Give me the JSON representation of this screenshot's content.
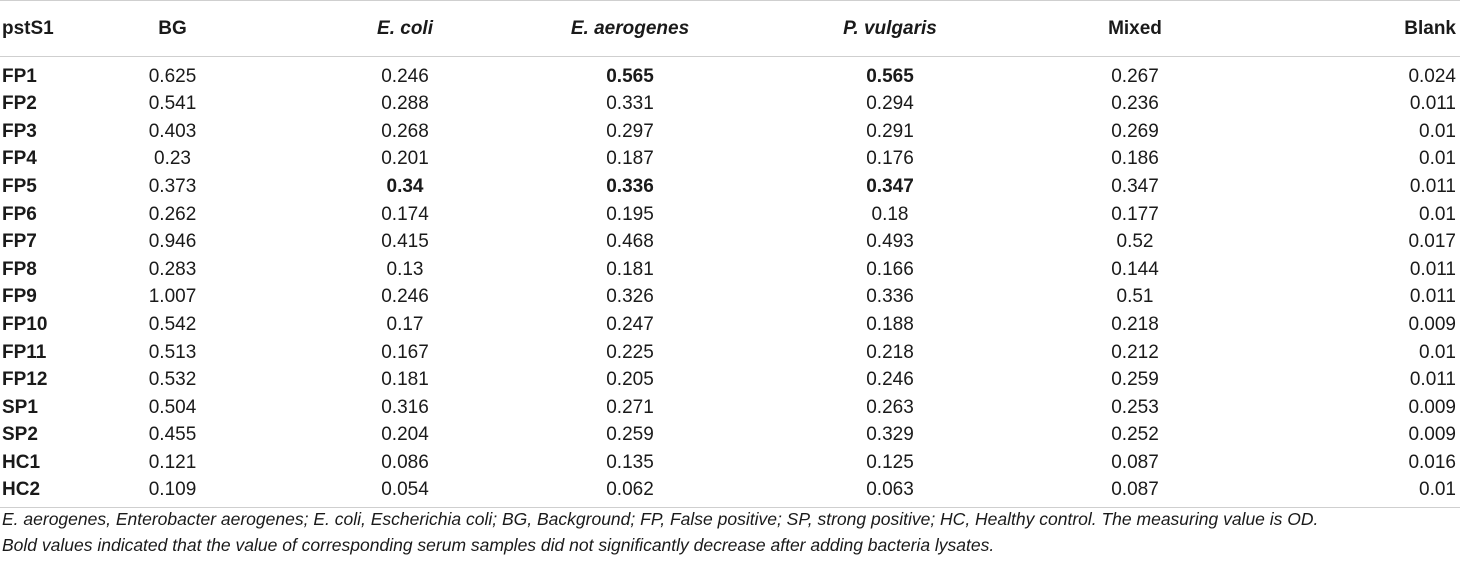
{
  "table": {
    "header": {
      "row_label": "pstS1",
      "columns": [
        "BG",
        "E. coli",
        "E. aerogenes",
        "P. vulgaris",
        "Mixed",
        "Blank"
      ]
    },
    "rows": [
      {
        "label": "FP1",
        "values": [
          "0.625",
          "0.246",
          "0.565",
          "0.565",
          "0.267",
          "0.024"
        ],
        "bold": [
          false,
          false,
          true,
          true,
          false,
          false
        ]
      },
      {
        "label": "FP2",
        "values": [
          "0.541",
          "0.288",
          "0.331",
          "0.294",
          "0.236",
          "0.011"
        ],
        "bold": [
          false,
          false,
          false,
          false,
          false,
          false
        ]
      },
      {
        "label": "FP3",
        "values": [
          "0.403",
          "0.268",
          "0.297",
          "0.291",
          "0.269",
          "0.01"
        ],
        "bold": [
          false,
          false,
          false,
          false,
          false,
          false
        ]
      },
      {
        "label": "FP4",
        "values": [
          "0.23",
          "0.201",
          "0.187",
          "0.176",
          "0.186",
          "0.01"
        ],
        "bold": [
          false,
          false,
          false,
          false,
          false,
          false
        ]
      },
      {
        "label": "FP5",
        "values": [
          "0.373",
          "0.34",
          "0.336",
          "0.347",
          "0.347",
          "0.011"
        ],
        "bold": [
          false,
          true,
          true,
          true,
          false,
          false
        ]
      },
      {
        "label": "FP6",
        "values": [
          "0.262",
          "0.174",
          "0.195",
          "0.18",
          "0.177",
          "0.01"
        ],
        "bold": [
          false,
          false,
          false,
          false,
          false,
          false
        ]
      },
      {
        "label": "FP7",
        "values": [
          "0.946",
          "0.415",
          "0.468",
          "0.493",
          "0.52",
          "0.017"
        ],
        "bold": [
          false,
          false,
          false,
          false,
          false,
          false
        ]
      },
      {
        "label": "FP8",
        "values": [
          "0.283",
          "0.13",
          "0.181",
          "0.166",
          "0.144",
          "0.011"
        ],
        "bold": [
          false,
          false,
          false,
          false,
          false,
          false
        ]
      },
      {
        "label": "FP9",
        "values": [
          "1.007",
          "0.246",
          "0.326",
          "0.336",
          "0.51",
          "0.011"
        ],
        "bold": [
          false,
          false,
          false,
          false,
          false,
          false
        ]
      },
      {
        "label": "FP10",
        "values": [
          "0.542",
          "0.17",
          "0.247",
          "0.188",
          "0.218",
          "0.009"
        ],
        "bold": [
          false,
          false,
          false,
          false,
          false,
          false
        ]
      },
      {
        "label": "FP11",
        "values": [
          "0.513",
          "0.167",
          "0.225",
          "0.218",
          "0.212",
          "0.01"
        ],
        "bold": [
          false,
          false,
          false,
          false,
          false,
          false
        ]
      },
      {
        "label": "FP12",
        "values": [
          "0.532",
          "0.181",
          "0.205",
          "0.246",
          "0.259",
          "0.011"
        ],
        "bold": [
          false,
          false,
          false,
          false,
          false,
          false
        ]
      },
      {
        "label": "SP1",
        "values": [
          "0.504",
          "0.316",
          "0.271",
          "0.263",
          "0.253",
          "0.009"
        ],
        "bold": [
          false,
          false,
          false,
          false,
          false,
          false
        ]
      },
      {
        "label": "SP2",
        "values": [
          "0.455",
          "0.204",
          "0.259",
          "0.329",
          "0.252",
          "0.009"
        ],
        "bold": [
          false,
          false,
          false,
          false,
          false,
          false
        ]
      },
      {
        "label": "HC1",
        "values": [
          "0.121",
          "0.086",
          "0.135",
          "0.125",
          "0.087",
          "0.016"
        ],
        "bold": [
          false,
          false,
          false,
          false,
          false,
          false
        ]
      },
      {
        "label": "HC2",
        "values": [
          "0.109",
          "0.054",
          "0.062",
          "0.063",
          "0.087",
          "0.01"
        ],
        "bold": [
          false,
          false,
          false,
          false,
          false,
          false
        ]
      }
    ]
  },
  "footnote": {
    "line1": "E. aerogenes, Enterobacter aerogenes; E. coli, Escherichia coli; BG, Background; FP, False positive; SP, strong positive; HC, Healthy control. The measuring value is OD.",
    "line2": "Bold values indicated that the value of corresponding serum samples did not significantly decrease after adding bacteria lysates."
  }
}
